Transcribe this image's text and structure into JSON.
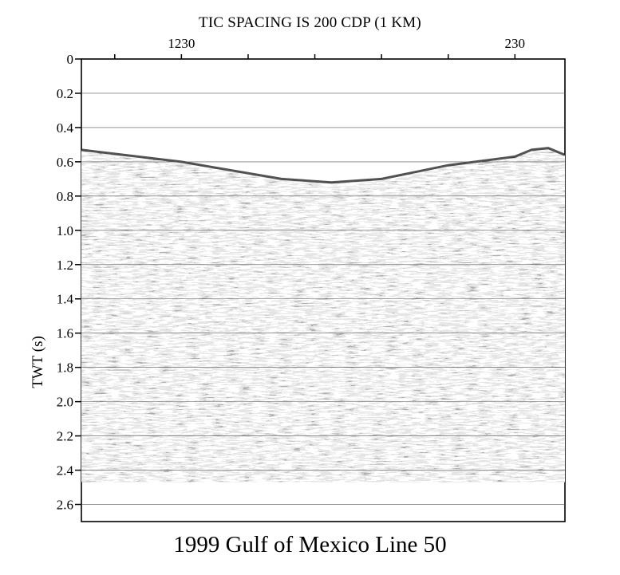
{
  "chart_data": {
    "type": "seismic-section",
    "title": "1999 Gulf of Mexico Line 50",
    "top_note": "TIC SPACING IS 200 CDP (1 KM)",
    "ylabel": "TWT (s)",
    "ylim": [
      0,
      2.7
    ],
    "y_inverted": true,
    "y_ticks": [
      "0",
      "0.2",
      "0.4",
      "0.6",
      "0.8",
      "1.0",
      "1.2",
      "1.4",
      "1.6",
      "1.8",
      "2.0",
      "2.2",
      "2.4",
      "2.6"
    ],
    "y_tick_values": [
      0,
      0.2,
      0.4,
      0.6,
      0.8,
      1.0,
      1.2,
      1.4,
      1.6,
      1.8,
      2.0,
      2.2,
      2.4,
      2.6
    ],
    "x_top_labels": [
      {
        "text": "1230",
        "cdp": 1230
      },
      {
        "text": "230",
        "cdp": 230
      }
    ],
    "x_cdp_range": [
      1530,
      80
    ],
    "x_tick_spacing_cdp": 200,
    "grid": "horizontal",
    "seafloor_twt": [
      {
        "cdp": 1530,
        "twt": 0.53
      },
      {
        "cdp": 1230,
        "twt": 0.6
      },
      {
        "cdp": 930,
        "twt": 0.7
      },
      {
        "cdp": 780,
        "twt": 0.72
      },
      {
        "cdp": 630,
        "twt": 0.7
      },
      {
        "cdp": 430,
        "twt": 0.62
      },
      {
        "cdp": 230,
        "twt": 0.57
      },
      {
        "cdp": 180,
        "twt": 0.53
      },
      {
        "cdp": 130,
        "twt": 0.52
      },
      {
        "cdp": 80,
        "twt": 0.56
      }
    ],
    "data_end_twt": 2.47
  }
}
